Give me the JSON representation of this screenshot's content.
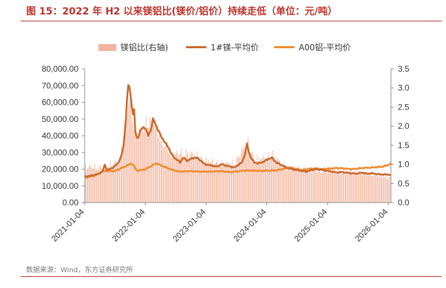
{
  "title": "图 15：2022 年 H2 以来镁铝比(镁价/铝价）持续走低（单位：元/吨）",
  "source": "数据来源：Wind，东方证券研究所",
  "colors": {
    "accent": "#c0322b",
    "ratio_bars": "#f2b49c",
    "mg_line": "#c8692a",
    "al_line": "#ef8a2e"
  },
  "chart_data": {
    "type": "line",
    "legend": [
      "镁铝比(右轴)",
      "1#镁-平均价",
      "A00铝-平均价"
    ],
    "legend_position": "top",
    "x_ticks": [
      "2021-01-04",
      "2022-01-04",
      "2023-01-04",
      "2024-01-04",
      "2025-01-04",
      "2026-01-04"
    ],
    "y_left": {
      "ticks": [
        "0.00",
        "10,000.00",
        "20,000.00",
        "30,000.00",
        "40,000.00",
        "50,000.00",
        "60,000.00",
        "70,000.00",
        "80,000.00"
      ],
      "lim": [
        0,
        80000
      ]
    },
    "y_right": {
      "ticks": [
        "0.0",
        "0.5",
        "1.0",
        "1.5",
        "2.0",
        "2.5",
        "3.0",
        "3.5"
      ],
      "lim": [
        0,
        3.5
      ]
    },
    "x_range": [
      "2021-01-04",
      "2026-01-20"
    ],
    "grid": false,
    "series": [
      {
        "name": "1#镁-平均价",
        "axis": "left",
        "type": "line",
        "points": [
          [
            "2021-01-04",
            15500
          ],
          [
            "2021-02-15",
            16200
          ],
          [
            "2021-03-25",
            17000
          ],
          [
            "2021-04-20",
            18500
          ],
          [
            "2021-05-05",
            22500
          ],
          [
            "2021-05-20",
            19500
          ],
          [
            "2021-06-15",
            20500
          ],
          [
            "2021-07-20",
            23000
          ],
          [
            "2021-08-10",
            27000
          ],
          [
            "2021-08-25",
            33000
          ],
          [
            "2021-09-05",
            45000
          ],
          [
            "2021-09-15",
            60000
          ],
          [
            "2021-09-23",
            70000
          ],
          [
            "2021-09-28",
            71500
          ],
          [
            "2021-10-05",
            65000
          ],
          [
            "2021-10-15",
            58000
          ],
          [
            "2021-10-20",
            52000
          ],
          [
            "2021-10-28",
            56000
          ],
          [
            "2021-11-05",
            42000
          ],
          [
            "2021-11-15",
            38000
          ],
          [
            "2021-11-25",
            40000
          ],
          [
            "2021-12-05",
            43000
          ],
          [
            "2021-12-20",
            45000
          ],
          [
            "2022-01-04",
            45000
          ],
          [
            "2022-01-20",
            40000
          ],
          [
            "2022-02-05",
            43000
          ],
          [
            "2022-02-20",
            50000
          ],
          [
            "2022-03-01",
            48000
          ],
          [
            "2022-03-15",
            45000
          ],
          [
            "2022-04-01",
            41000
          ],
          [
            "2022-05-01",
            36000
          ],
          [
            "2022-05-20",
            33500
          ],
          [
            "2022-06-10",
            29000
          ],
          [
            "2022-06-30",
            26500
          ],
          [
            "2022-07-15",
            25500
          ],
          [
            "2022-08-01",
            24000
          ],
          [
            "2022-08-20",
            27000
          ],
          [
            "2022-09-10",
            25000
          ],
          [
            "2022-10-05",
            26000
          ],
          [
            "2022-10-25",
            27000
          ],
          [
            "2022-11-15",
            26500
          ],
          [
            "2022-12-05",
            25000
          ],
          [
            "2022-12-25",
            23000
          ],
          [
            "2023-01-20",
            22500
          ],
          [
            "2023-02-15",
            22000
          ],
          [
            "2023-03-10",
            21500
          ],
          [
            "2023-04-10",
            23000
          ],
          [
            "2023-05-05",
            22000
          ],
          [
            "2023-06-01",
            21500
          ],
          [
            "2023-06-25",
            21000
          ],
          [
            "2023-07-15",
            22500
          ],
          [
            "2023-08-10",
            24000
          ],
          [
            "2023-08-28",
            30000
          ],
          [
            "2023-09-08",
            35500
          ],
          [
            "2023-09-18",
            30000
          ],
          [
            "2023-10-01",
            27000
          ],
          [
            "2023-10-20",
            24000
          ],
          [
            "2023-11-10",
            23500
          ],
          [
            "2023-12-05",
            24000
          ],
          [
            "2024-01-04",
            25500
          ],
          [
            "2024-02-01",
            27000
          ],
          [
            "2024-03-01",
            24000
          ],
          [
            "2024-04-01",
            22500
          ],
          [
            "2024-05-01",
            21000
          ],
          [
            "2024-06-01",
            20000
          ],
          [
            "2024-07-01",
            19500
          ],
          [
            "2024-08-01",
            19000
          ],
          [
            "2024-09-01",
            18500
          ],
          [
            "2024-10-01",
            19500
          ],
          [
            "2024-11-01",
            20000
          ],
          [
            "2024-12-01",
            19500
          ],
          [
            "2025-01-04",
            19000
          ],
          [
            "2025-02-01",
            18500
          ],
          [
            "2025-03-01",
            18000
          ],
          [
            "2025-04-01",
            18300
          ],
          [
            "2025-05-01",
            17800
          ],
          [
            "2025-06-01",
            17500
          ],
          [
            "2025-07-01",
            17300
          ],
          [
            "2025-08-01",
            18000
          ],
          [
            "2025-09-01",
            17200
          ],
          [
            "2025-10-01",
            17500
          ],
          [
            "2025-11-01",
            17000
          ],
          [
            "2025-12-01",
            16800
          ],
          [
            "2026-01-04",
            16800
          ],
          [
            "2026-01-20",
            16500
          ]
        ]
      },
      {
        "name": "A00铝-平均价",
        "axis": "left",
        "type": "line",
        "points": [
          [
            "2021-01-04",
            14800
          ],
          [
            "2021-03-01",
            16000
          ],
          [
            "2021-05-01",
            19000
          ],
          [
            "2021-07-01",
            18800
          ],
          [
            "2021-09-01",
            21500
          ],
          [
            "2021-10-15",
            23500
          ],
          [
            "2021-11-15",
            19000
          ],
          [
            "2022-01-04",
            20000
          ],
          [
            "2022-03-10",
            23500
          ],
          [
            "2022-04-15",
            22000
          ],
          [
            "2022-06-15",
            19500
          ],
          [
            "2022-08-01",
            18500
          ],
          [
            "2022-10-01",
            18800
          ],
          [
            "2022-12-01",
            18500
          ],
          [
            "2023-02-01",
            18500
          ],
          [
            "2023-04-01",
            18800
          ],
          [
            "2023-06-01",
            18200
          ],
          [
            "2023-09-01",
            19200
          ],
          [
            "2023-12-01",
            19000
          ],
          [
            "2024-03-01",
            19200
          ],
          [
            "2024-05-20",
            21000
          ],
          [
            "2024-08-01",
            19500
          ],
          [
            "2024-10-15",
            20500
          ],
          [
            "2024-12-01",
            20000
          ],
          [
            "2025-03-01",
            20700
          ],
          [
            "2025-06-01",
            20000
          ],
          [
            "2025-08-01",
            20700
          ],
          [
            "2025-10-01",
            21000
          ],
          [
            "2025-12-01",
            21500
          ],
          [
            "2026-01-04",
            22500
          ],
          [
            "2026-01-20",
            23500
          ]
        ]
      },
      {
        "name": "镁铝比(右轴)",
        "axis": "right",
        "type": "bar",
        "points": [
          [
            "2021-01-04",
            1.04
          ],
          [
            "2021-05-01",
            1.03
          ],
          [
            "2021-08-01",
            1.2
          ],
          [
            "2021-09-10",
            2.3
          ],
          [
            "2021-09-28",
            3.05
          ],
          [
            "2021-10-20",
            2.4
          ],
          [
            "2021-11-15",
            1.9
          ],
          [
            "2021-12-20",
            2.2
          ],
          [
            "2022-02-20",
            2.4
          ],
          [
            "2022-04-15",
            1.75
          ],
          [
            "2022-06-15",
            1.4
          ],
          [
            "2022-08-20",
            1.45
          ],
          [
            "2022-10-25",
            1.4
          ],
          [
            "2022-12-25",
            1.22
          ],
          [
            "2023-03-10",
            1.15
          ],
          [
            "2023-06-25",
            1.13
          ],
          [
            "2023-09-08",
            1.8
          ],
          [
            "2023-10-20",
            1.25
          ],
          [
            "2024-01-04",
            1.3
          ],
          [
            "2024-02-01",
            1.42
          ],
          [
            "2024-05-01",
            1.0
          ],
          [
            "2024-08-01",
            0.98
          ],
          [
            "2024-10-01",
            0.95
          ],
          [
            "2025-01-04",
            0.93
          ],
          [
            "2025-04-01",
            0.9
          ],
          [
            "2025-07-01",
            0.86
          ],
          [
            "2025-10-01",
            0.82
          ],
          [
            "2025-12-01",
            0.78
          ],
          [
            "2026-01-20",
            0.72
          ]
        ]
      }
    ]
  }
}
